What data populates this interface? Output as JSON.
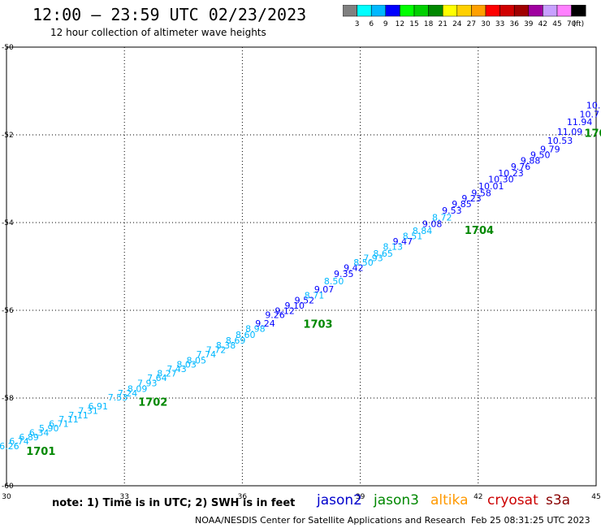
{
  "header": {
    "title": "12:00 – 23:59 UTC 02/23/2023",
    "subtitle": "12 hour collection of altimeter wave heights"
  },
  "colorbar": {
    "labels": [
      "3",
      "6",
      "9",
      "12",
      "15",
      "18",
      "21",
      "24",
      "27",
      "30",
      "33",
      "36",
      "39",
      "42",
      "45",
      "70"
    ],
    "unit": "(ft)",
    "colors": [
      "#808080",
      "#00ffff",
      "#00b8ff",
      "#0000ff",
      "#00ff00",
      "#00d000",
      "#008800",
      "#ffff00",
      "#ffd000",
      "#ffa000",
      "#ff0000",
      "#d00000",
      "#a00000",
      "#a000a0",
      "#c8a0ff",
      "#ff80ff",
      "#000000"
    ]
  },
  "footer": {
    "note": "note:  1) Time is in UTC; 2) SWH is in feet",
    "credit": "NOAA/NESDIS Center for Satellite Applications and Research",
    "stamp": "Feb 25 08:31:25 UTC 2023",
    "missions": [
      {
        "name": "jason2",
        "color": "#0000cc"
      },
      {
        "name": "jason3",
        "color": "#008800"
      },
      {
        "name": "altika",
        "color": "#ff9900"
      },
      {
        "name": "cryosat",
        "color": "#cc0000"
      },
      {
        "name": "s3a",
        "color": "#880000"
      }
    ]
  },
  "chart_data": {
    "type": "scatter",
    "xlim": [
      30,
      45
    ],
    "ylim": [
      -60,
      -50
    ],
    "xticks": [
      "30",
      "33",
      "36",
      "39",
      "42",
      "45"
    ],
    "yticks": [
      "-50",
      "-52",
      "-54",
      "-56",
      "-58",
      "-60"
    ],
    "grid": true,
    "points": [
      {
        "x": 30.07,
        "y": -59.17,
        "v": "6.26",
        "c": "#00b8ff"
      },
      {
        "x": 30.32,
        "y": -59.06,
        "v": "6.74",
        "c": "#00b8ff"
      },
      {
        "x": 30.57,
        "y": -58.96,
        "v": "6.89",
        "c": "#00b8ff"
      },
      {
        "x": 30.83,
        "y": -58.86,
        "v": "6.34",
        "c": "#00b8ff"
      },
      {
        "x": 31.08,
        "y": -58.76,
        "v": "5.90",
        "c": "#00b8ff"
      },
      {
        "x": 31.33,
        "y": -58.66,
        "v": "6.71",
        "c": "#00b8ff"
      },
      {
        "x": 31.58,
        "y": -58.56,
        "v": "7.11",
        "c": "#00b8ff"
      },
      {
        "x": 31.83,
        "y": -58.46,
        "v": "7.11",
        "c": "#00b8ff"
      },
      {
        "x": 32.08,
        "y": -58.36,
        "v": "7.31",
        "c": "#00b8ff"
      },
      {
        "x": 32.33,
        "y": -58.26,
        "v": "6.91",
        "c": "#00b8ff"
      },
      {
        "x": 32.83,
        "y": -58.06,
        "v": "7.53",
        "c": "#00b8ff"
      },
      {
        "x": 33.08,
        "y": -57.96,
        "v": "7.24",
        "c": "#00b8ff"
      },
      {
        "x": 33.33,
        "y": -57.86,
        "v": "8.09",
        "c": "#00b8ff"
      },
      {
        "x": 33.58,
        "y": -57.73,
        "v": "7.93",
        "c": "#00b8ff"
      },
      {
        "x": 33.83,
        "y": -57.61,
        "v": "7.64",
        "c": "#00b8ff"
      },
      {
        "x": 34.08,
        "y": -57.51,
        "v": "8.27",
        "c": "#00b8ff"
      },
      {
        "x": 34.33,
        "y": -57.41,
        "v": "7.43",
        "c": "#00b8ff"
      },
      {
        "x": 34.58,
        "y": -57.31,
        "v": "8.03",
        "c": "#00b8ff"
      },
      {
        "x": 34.83,
        "y": -57.21,
        "v": "8.05",
        "c": "#00b8ff"
      },
      {
        "x": 35.08,
        "y": -57.07,
        "v": "7.74",
        "c": "#00b8ff"
      },
      {
        "x": 35.33,
        "y": -56.97,
        "v": "7.72",
        "c": "#00b8ff"
      },
      {
        "x": 35.58,
        "y": -56.87,
        "v": "8.38",
        "c": "#00b8ff"
      },
      {
        "x": 35.83,
        "y": -56.76,
        "v": "8.69",
        "c": "#00b8ff"
      },
      {
        "x": 36.08,
        "y": -56.63,
        "v": "8.60",
        "c": "#00b8ff"
      },
      {
        "x": 36.33,
        "y": -56.49,
        "v": "8.98",
        "c": "#00b8ff"
      },
      {
        "x": 36.58,
        "y": -56.37,
        "v": "9.24",
        "c": "#0000ff"
      },
      {
        "x": 36.83,
        "y": -56.18,
        "v": "9.26",
        "c": "#0000ff"
      },
      {
        "x": 37.08,
        "y": -56.08,
        "v": "9.12",
        "c": "#0000ff"
      },
      {
        "x": 37.33,
        "y": -55.96,
        "v": "9.10",
        "c": "#0000ff"
      },
      {
        "x": 37.58,
        "y": -55.84,
        "v": "9.52",
        "c": "#0000ff"
      },
      {
        "x": 37.83,
        "y": -55.73,
        "v": "8.71",
        "c": "#00b8ff"
      },
      {
        "x": 38.08,
        "y": -55.59,
        "v": "9.07",
        "c": "#0000ff"
      },
      {
        "x": 38.33,
        "y": -55.41,
        "v": "8.50",
        "c": "#00b8ff"
      },
      {
        "x": 38.58,
        "y": -55.24,
        "v": "9.35",
        "c": "#0000ff"
      },
      {
        "x": 38.83,
        "y": -55.1,
        "v": "9.42",
        "c": "#0000ff"
      },
      {
        "x": 39.08,
        "y": -54.98,
        "v": "8.50",
        "c": "#00b8ff"
      },
      {
        "x": 39.33,
        "y": -54.88,
        "v": "7.93",
        "c": "#00b8ff"
      },
      {
        "x": 39.58,
        "y": -54.78,
        "v": "8.65",
        "c": "#00b8ff"
      },
      {
        "x": 39.83,
        "y": -54.62,
        "v": "8.13",
        "c": "#00b8ff"
      },
      {
        "x": 40.08,
        "y": -54.5,
        "v": "9.47",
        "c": "#0000ff"
      },
      {
        "x": 40.33,
        "y": -54.38,
        "v": "8.51",
        "c": "#00b8ff"
      },
      {
        "x": 40.58,
        "y": -54.26,
        "v": "8.84",
        "c": "#00b8ff"
      },
      {
        "x": 40.83,
        "y": -54.1,
        "v": "9.08",
        "c": "#0000ff"
      },
      {
        "x": 41.08,
        "y": -53.95,
        "v": "8.72",
        "c": "#00b8ff"
      },
      {
        "x": 41.33,
        "y": -53.8,
        "v": "9.53",
        "c": "#0000ff"
      },
      {
        "x": 41.58,
        "y": -53.65,
        "v": "9.85",
        "c": "#0000ff"
      },
      {
        "x": 41.83,
        "y": -53.52,
        "v": "9.23",
        "c": "#0000ff"
      },
      {
        "x": 42.08,
        "y": -53.4,
        "v": "9.58",
        "c": "#0000ff"
      },
      {
        "x": 42.33,
        "y": -53.24,
        "v": "10.01",
        "c": "#0000ff"
      },
      {
        "x": 42.58,
        "y": -53.08,
        "v": "10.30",
        "c": "#0000ff"
      },
      {
        "x": 42.83,
        "y": -52.94,
        "v": "10.23",
        "c": "#0000ff"
      },
      {
        "x": 43.08,
        "y": -52.8,
        "v": "9.76",
        "c": "#0000ff"
      },
      {
        "x": 43.33,
        "y": -52.66,
        "v": "9.88",
        "c": "#0000ff"
      },
      {
        "x": 43.58,
        "y": -52.53,
        "v": "9.50",
        "c": "#0000ff"
      },
      {
        "x": 43.83,
        "y": -52.4,
        "v": "9.79",
        "c": "#0000ff"
      },
      {
        "x": 44.08,
        "y": -52.2,
        "v": "10.53",
        "c": "#0000ff"
      },
      {
        "x": 44.33,
        "y": -52.0,
        "v": "11.09",
        "c": "#0000ff"
      },
      {
        "x": 44.58,
        "y": -51.78,
        "v": "11.94",
        "c": "#0000ff"
      },
      {
        "x": 44.83,
        "y": -51.6,
        "v": "10.7",
        "c": "#0000ff"
      },
      {
        "x": 44.93,
        "y": -51.4,
        "v": "10.",
        "c": "#0000ff"
      }
    ],
    "annotations": [
      {
        "x": 30.5,
        "y": -59.3,
        "text": "1701",
        "color": "#008800"
      },
      {
        "x": 33.35,
        "y": -58.18,
        "text": "1702",
        "color": "#008800"
      },
      {
        "x": 37.55,
        "y": -56.4,
        "text": "1703",
        "color": "#008800"
      },
      {
        "x": 41.65,
        "y": -54.26,
        "text": "1704",
        "color": "#008800"
      },
      {
        "x": 44.7,
        "y": -52.05,
        "text": "170",
        "color": "#008800"
      }
    ]
  }
}
